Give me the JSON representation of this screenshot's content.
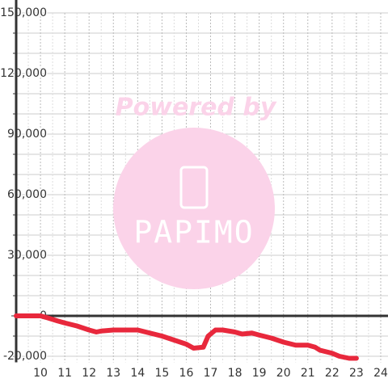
{
  "chart_data": {
    "type": "line",
    "x": [
      9,
      10,
      10.3,
      10.7,
      11,
      11.5,
      12,
      12.3,
      12.5,
      13,
      13.5,
      14,
      14.5,
      15,
      15.5,
      16,
      16.3,
      16.7,
      16.9,
      17.2,
      17.5,
      18,
      18.3,
      18.7,
      19,
      19.5,
      20,
      20.5,
      21,
      21.3,
      21.5,
      22,
      22.3,
      22.7,
      23
    ],
    "series": [
      {
        "color": "#e8283c",
        "values": [
          0,
          0,
          -1000,
          -2500,
          -3500,
          -5000,
          -7000,
          -8000,
          -7500,
          -7000,
          -7000,
          -7000,
          -8500,
          -10000,
          -12000,
          -14000,
          -16000,
          -15500,
          -10000,
          -7000,
          -7000,
          -8000,
          -9000,
          -8500,
          -9500,
          -11000,
          -13000,
          -14500,
          -14500,
          -15500,
          -17000,
          -18500,
          -20000,
          -21000,
          -21000
        ]
      }
    ],
    "xlim": [
      9,
      24.3
    ],
    "xticks": [
      10,
      11,
      12,
      13,
      14,
      15,
      16,
      17,
      18,
      19,
      20,
      21,
      22,
      23,
      24
    ],
    "ylim": [
      -23000,
      150000
    ],
    "yticks": [
      {
        "value": -20000,
        "label": "-20,000"
      },
      0,
      {
        "value": 30000,
        "label": "30,000"
      },
      {
        "value": 60000,
        "label": "60,000"
      },
      {
        "value": 90000,
        "label": "90,000"
      },
      {
        "value": 120000,
        "label": "120,000"
      },
      {
        "value": 150000,
        "label": "150,000"
      }
    ],
    "y_minor_ticks": [
      -10000,
      10000,
      20000,
      40000,
      50000,
      70000,
      80000,
      100000,
      110000,
      130000,
      140000
    ],
    "grid": true,
    "watermark": [
      "Powered by",
      "PAPIMO"
    ]
  }
}
